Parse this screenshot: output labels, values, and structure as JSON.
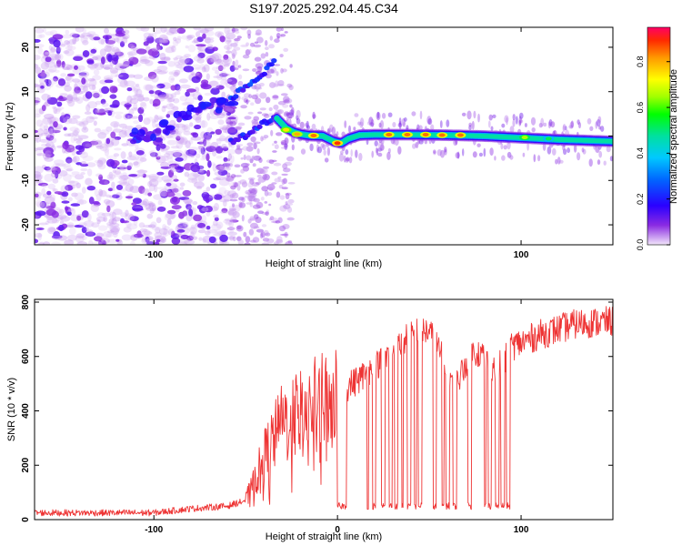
{
  "page_title": "S197.2025.292.04.45.C34",
  "chart_data": [
    {
      "type": "heatmap",
      "xlabel": "Height of straight line (km)",
      "ylabel": "Frequency (Hz)",
      "xlim": [
        -165,
        150
      ],
      "ylim": [
        -24.5,
        24.5
      ],
      "x_ticks": [
        -100,
        0,
        100
      ],
      "y_ticks": [
        -20,
        -10,
        0,
        10,
        20
      ],
      "colorbar": {
        "label": "Normalized spectral amplitude",
        "range": [
          0,
          0.95
        ],
        "ticks": [
          "0.0",
          "0.2",
          "0.4",
          "0.6",
          "0.8"
        ],
        "tick_values": [
          0,
          0.2,
          0.4,
          0.6,
          0.8
        ],
        "colors": [
          "#f2e6fa",
          "#8a2be2",
          "#2a00ff",
          "#0066ff",
          "#00c8ff",
          "#00e0a0",
          "#00ff00",
          "#a0ff00",
          "#ffff00",
          "#ff9900",
          "#ff2a00",
          "#ff0066"
        ]
      },
      "main_line": {
        "description": "tonal frequency track",
        "points": [
          [
            -33,
            4
          ],
          [
            -28,
            1.8
          ],
          [
            -24,
            0.9
          ],
          [
            -20,
            0.4
          ],
          [
            -15,
            0.1
          ],
          [
            -8,
            0.0
          ],
          [
            -2,
            -1.2
          ],
          [
            2,
            -1.6
          ],
          [
            6,
            -0.6
          ],
          [
            12,
            0.2
          ],
          [
            20,
            0.3
          ],
          [
            40,
            0.3
          ],
          [
            60,
            0.2
          ],
          [
            80,
            0.0
          ],
          [
            100,
            -0.4
          ],
          [
            120,
            -0.8
          ],
          [
            150,
            -1.2
          ]
        ],
        "peaks": [
          [
            -28,
            1.4,
            0.75
          ],
          [
            -22,
            0.4,
            0.8
          ],
          [
            -13,
            0.1,
            0.85
          ],
          [
            0,
            -1.6,
            0.9
          ],
          [
            28,
            0.3,
            0.85
          ],
          [
            38,
            0.3,
            0.85
          ],
          [
            48,
            0.3,
            0.85
          ],
          [
            57,
            0.2,
            0.85
          ],
          [
            67,
            0.2,
            0.85
          ],
          [
            102,
            -0.3,
            0.65
          ],
          [
            115,
            -0.6,
            0.5
          ]
        ]
      },
      "arm_upper": [
        [
          -58,
          8.5
        ],
        [
          -50,
          11
        ],
        [
          -44,
          12.5
        ],
        [
          -38,
          15
        ],
        [
          -34,
          18
        ]
      ],
      "arm_lower": [
        [
          -58,
          -1.5
        ],
        [
          -50,
          0.2
        ],
        [
          -44,
          1.8
        ],
        [
          -38,
          3.2
        ],
        [
          -33,
          4.2
        ]
      ],
      "early_track": [
        [
          -110,
          0
        ],
        [
          -100,
          0.4
        ],
        [
          -92,
          2
        ],
        [
          -84,
          4
        ],
        [
          -76,
          6
        ],
        [
          -68,
          7
        ],
        [
          -60,
          8.5
        ]
      ]
    },
    {
      "type": "line",
      "xlabel": "Height of straight line (km)",
      "ylabel": "SNR (10 * v/v)",
      "xlim": [
        -165,
        150
      ],
      "ylim": [
        0,
        810
      ],
      "x_ticks": [
        -100,
        0,
        100
      ],
      "y_ticks": [
        0,
        200,
        400,
        600,
        800
      ],
      "series": [
        {
          "color": "#ee3333",
          "baseline_points": [
            [
              -165,
              25
            ],
            [
              -100,
              25
            ],
            [
              -80,
              40
            ],
            [
              -60,
              50
            ],
            [
              -50,
              70
            ],
            [
              -45,
              140
            ],
            [
              -40,
              230
            ],
            [
              -35,
              290
            ],
            [
              -30,
              350
            ],
            [
              -20,
              400
            ],
            [
              -10,
              420
            ],
            [
              0,
              460
            ],
            [
              10,
              510
            ],
            [
              20,
              560
            ],
            [
              30,
              620
            ],
            [
              40,
              680
            ],
            [
              45,
              700
            ],
            [
              50,
              690
            ],
            [
              55,
              630
            ],
            [
              60,
              540
            ],
            [
              65,
              500
            ],
            [
              70,
              580
            ],
            [
              75,
              620
            ],
            [
              80,
              600
            ],
            [
              85,
              560
            ],
            [
              90,
              570
            ],
            [
              95,
              640
            ],
            [
              100,
              650
            ],
            [
              110,
              680
            ],
            [
              120,
              700
            ],
            [
              130,
              720
            ],
            [
              150,
              730
            ]
          ],
          "dropouts": [
            [
              0,
              5
            ],
            [
              16,
              17
            ],
            [
              19,
              21
            ],
            [
              24,
              26
            ],
            [
              28,
              30
            ],
            [
              31,
              33
            ],
            [
              35,
              36
            ],
            [
              38,
              40
            ],
            [
              42,
              43
            ],
            [
              44,
              46
            ],
            [
              52,
              54
            ],
            [
              57,
              58
            ],
            [
              59,
              61
            ],
            [
              63,
              65
            ],
            [
              71,
              73
            ],
            [
              80,
              81
            ],
            [
              82,
              84
            ],
            [
              86,
              88
            ],
            [
              89,
              91
            ],
            [
              92,
              94
            ]
          ],
          "dropout_level": 50,
          "noise": 40
        }
      ]
    }
  ]
}
